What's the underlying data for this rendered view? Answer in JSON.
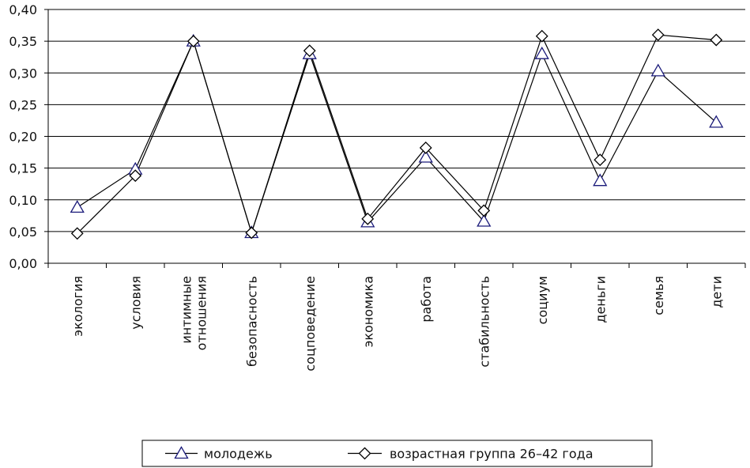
{
  "chart_data": {
    "type": "line",
    "categories": [
      [
        "экология"
      ],
      [
        "условия"
      ],
      [
        "интимные",
        "отношения"
      ],
      [
        "безопасность"
      ],
      [
        "соцповедение"
      ],
      [
        "экономика"
      ],
      [
        "работа"
      ],
      [
        "стабильность"
      ],
      [
        "социум"
      ],
      [
        "деньги"
      ],
      [
        "семья"
      ],
      [
        "дети"
      ]
    ],
    "yticks": [
      "0,00",
      "0,05",
      "0,10",
      "0,15",
      "0,20",
      "0,25",
      "0,30",
      "0,35",
      "0,40"
    ],
    "ylim": [
      0,
      0.4
    ],
    "grid": true,
    "legend_position": "bottom",
    "series": [
      {
        "name": "молодежь",
        "marker": "triangle",
        "color": "#1a1a7a",
        "values": [
          0.088,
          0.148,
          0.35,
          0.048,
          0.33,
          0.065,
          0.167,
          0.066,
          0.33,
          0.13,
          0.303,
          0.222
        ]
      },
      {
        "name": "возрастная группа 26–42 года",
        "marker": "diamond",
        "color": "#000000",
        "values": [
          0.047,
          0.138,
          0.35,
          0.048,
          0.335,
          0.07,
          0.182,
          0.083,
          0.358,
          0.163,
          0.36,
          0.352
        ]
      }
    ]
  }
}
